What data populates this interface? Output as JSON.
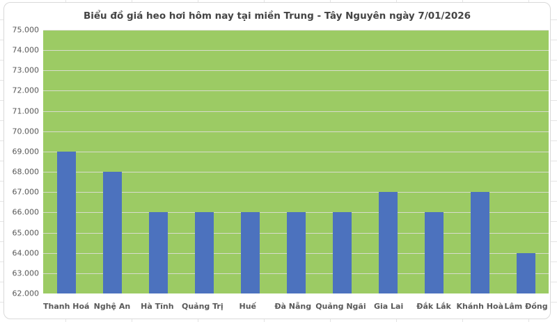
{
  "chart": {
    "style": {
      "bar_color": "#4C72BE",
      "plot_background": "#9CCB64",
      "gridline_color": "#d8dccd",
      "panel_border_color": "#d9d9d9",
      "title_color": "#444444",
      "axis_text_color": "#595959"
    }
  },
  "chart_data": {
    "type": "bar",
    "title": "Biểu đồ giá heo hơi hôm nay tại miền Trung - Tây Nguyên ngày 7/01/2026",
    "categories": [
      "Thanh Hoá",
      "Nghệ An",
      "Hà Tĩnh",
      "Quảng Trị",
      "Huế",
      "Đà Nẵng",
      "Quảng Ngãi",
      "Gia Lai",
      "Đắk Lắk",
      "Khánh Hoà",
      "Lâm Đồng"
    ],
    "values": [
      69000,
      68000,
      66000,
      66000,
      66000,
      66000,
      66000,
      67000,
      66000,
      67000,
      64000
    ],
    "xlabel": "",
    "ylabel": "",
    "ylim": [
      62000,
      75000
    ],
    "ytick_step": 1000,
    "ytick_labels_top_to_bottom": [
      "75.000",
      "74.000",
      "73.000",
      "72.000",
      "71.000",
      "70.000",
      "69.000",
      "68.000",
      "67.000",
      "66.000",
      "65.000",
      "64.000",
      "63.000",
      "62.000"
    ],
    "grid": true,
    "legend": false
  }
}
